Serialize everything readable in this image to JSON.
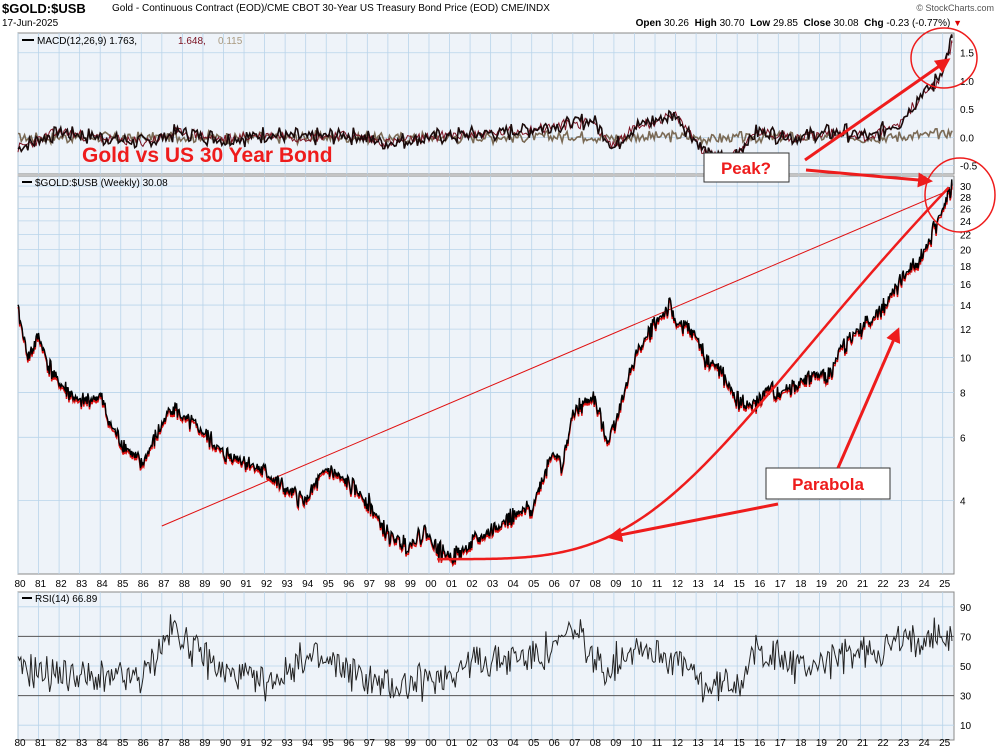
{
  "header": {
    "symbol": "$GOLD:$USB",
    "description": "Gold - Continuous Contract (EOD)/CME CBOT 30-Year US Treasury Bond Price (EOD)  CME/INDX",
    "date": "17-Jun-2025",
    "source": "© StockCharts.com",
    "open_label": "Open",
    "open": "30.26",
    "high_label": "High",
    "high": "30.70",
    "low_label": "Low",
    "low": "29.85",
    "close_label": "Close",
    "close": "30.08",
    "chg_label": "Chg",
    "chg": "-0.23 (-0.77%)"
  },
  "colors": {
    "grid_bg": "#eef3f9",
    "grid_line": "#b9d4ea",
    "price_line": "#000000",
    "down_line": "#e01010",
    "annotation": "#ee1c1c",
    "macd": "#1a0a0a",
    "signal": "#7a1020",
    "histogram": "#7a6a55",
    "rsi": "#222222"
  },
  "chart_data": [
    {
      "type": "line",
      "panel": "macd",
      "title": "MACD(12,26,9) 1.763, 1.648, 0.115",
      "legend": [
        {
          "label": "MACD(12,26,9)",
          "value": "1.763"
        },
        {
          "label": "",
          "value": "1.648"
        },
        {
          "label": "",
          "value": "0.115"
        }
      ],
      "y_ticks": [
        "1.5",
        "1.0",
        "0.5",
        "0.0",
        "-0.5"
      ],
      "ylim": [
        -0.65,
        1.85
      ],
      "series": [],
      "x": [
        1980.0,
        1982.0,
        1984.0,
        1986.0,
        1988.0,
        1990.0,
        1992.0,
        1994.0,
        1996.0,
        1998.0,
        2000.0,
        2002.0,
        2004.0,
        2006.0,
        2008.0,
        2009.0,
        2010.0,
        2012.0,
        2013.5,
        2014.5,
        2016.0,
        2018.0,
        2020.0,
        2021.5,
        2022.5,
        2023.0,
        2024.0,
        2024.5,
        2025.0,
        2025.45
      ],
      "values": [
        -0.2,
        0.1,
        0.0,
        -0.1,
        0.1,
        -0.05,
        0.05,
        0.0,
        0.05,
        -0.1,
        0.0,
        0.05,
        0.1,
        0.2,
        0.3,
        -0.2,
        0.2,
        0.4,
        -0.3,
        -0.4,
        0.1,
        0.0,
        0.1,
        0.0,
        0.2,
        0.3,
        0.8,
        0.9,
        1.2,
        1.763
      ]
    },
    {
      "type": "line",
      "panel": "price",
      "title": "$GOLD:$USB (Weekly) 30.08",
      "scale": "log",
      "y_ticks": [
        30,
        28,
        26,
        24,
        22,
        20,
        18,
        16,
        14,
        12,
        10,
        8,
        6,
        4
      ],
      "ylim": [
        2.5,
        32
      ],
      "x_ticks": [
        "80",
        "81",
        "82",
        "83",
        "84",
        "85",
        "86",
        "87",
        "88",
        "89",
        "90",
        "91",
        "92",
        "93",
        "94",
        "95",
        "96",
        "97",
        "98",
        "99",
        "00",
        "01",
        "02",
        "03",
        "04",
        "05",
        "06",
        "07",
        "08",
        "09",
        "10",
        "11",
        "12",
        "13",
        "14",
        "15",
        "16",
        "17",
        "18",
        "19",
        "20",
        "21",
        "22",
        "23",
        "24",
        "25"
      ],
      "x": [
        1980.0,
        1980.5,
        1981.0,
        1981.5,
        1982.0,
        1982.5,
        1983.0,
        1984.0,
        1984.5,
        1985.0,
        1986.0,
        1986.7,
        1987.5,
        1988.0,
        1989.0,
        1990.0,
        1991.0,
        1992.0,
        1993.0,
        1994.0,
        1995.0,
        1996.0,
        1997.0,
        1998.0,
        1999.0,
        1999.8,
        2000.5,
        2001.2,
        2002.0,
        2003.0,
        2004.0,
        2005.0,
        2006.0,
        2006.5,
        2007.0,
        2008.0,
        2008.7,
        2009.5,
        2010.0,
        2011.0,
        2011.7,
        2012.0,
        2013.0,
        2013.5,
        2014.0,
        2015.0,
        2015.8,
        2016.5,
        2017.0,
        2018.0,
        2018.5,
        2019.5,
        2020.0,
        2020.6,
        2021.0,
        2022.0,
        2022.5,
        2023.0,
        2023.5,
        2024.0,
        2024.5,
        2025.0,
        2025.45
      ],
      "values": [
        13.5,
        10.0,
        11.5,
        9.5,
        8.5,
        8.0,
        7.5,
        7.8,
        6.5,
        5.9,
        5.0,
        6.0,
        7.4,
        6.8,
        6.2,
        5.4,
        5.2,
        4.8,
        4.3,
        4.0,
        4.9,
        4.5,
        4.0,
        3.2,
        3.0,
        3.3,
        2.9,
        2.8,
        3.0,
        3.3,
        3.6,
        3.8,
        5.5,
        5.0,
        7.0,
        7.8,
        5.8,
        8.0,
        10.0,
        12.5,
        13.8,
        12.6,
        11.5,
        9.8,
        9.5,
        7.6,
        7.3,
        8.2,
        8.0,
        8.5,
        8.8,
        9.0,
        10.5,
        11.5,
        12.0,
        13.5,
        15.0,
        16.5,
        18.0,
        19.5,
        22.0,
        26.0,
        30.08
      ]
    },
    {
      "type": "line",
      "panel": "rsi",
      "title": "RSI(14) 66.89",
      "y_ticks": [
        90,
        70,
        50,
        30,
        10
      ],
      "ylim": [
        0,
        100
      ],
      "reference_lines": [
        70,
        30
      ],
      "x": [
        1980.0,
        1982.0,
        1984.0,
        1986.0,
        1987.5,
        1990.0,
        1992.0,
        1994.0,
        1996.0,
        1998.0,
        2000.0,
        2002.0,
        2004.0,
        2006.0,
        2007.0,
        2008.5,
        2010.0,
        2012.0,
        2013.5,
        2015.0,
        2016.0,
        2018.0,
        2020.0,
        2022.0,
        2023.5,
        2024.5,
        2025.45
      ],
      "values": [
        48,
        45,
        40,
        42,
        75,
        45,
        38,
        55,
        48,
        35,
        40,
        52,
        55,
        60,
        75,
        45,
        65,
        55,
        35,
        40,
        60,
        50,
        55,
        62,
        68,
        72,
        66.89
      ]
    }
  ],
  "annotations": {
    "title": "Gold vs US 30 Year Bond",
    "peak": "Peak?",
    "parabola": "Parabola"
  }
}
